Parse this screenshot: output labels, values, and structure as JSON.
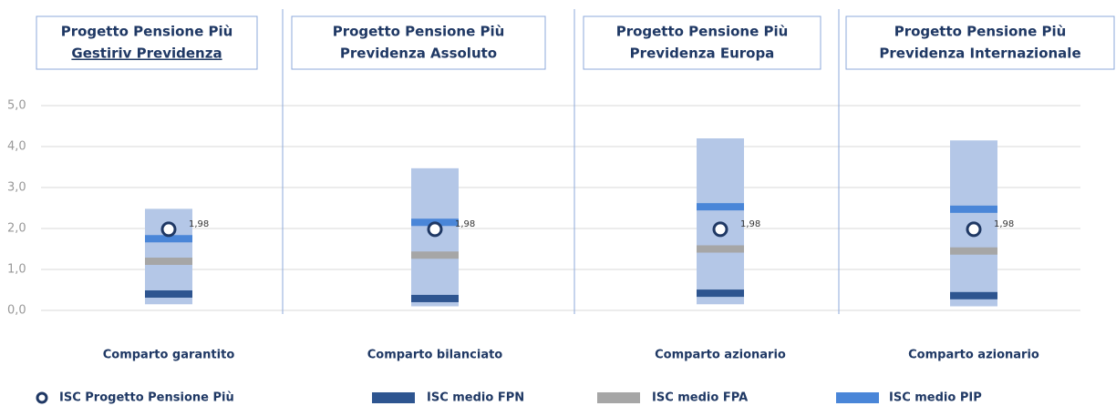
{
  "chart_data": {
    "type": "range",
    "panel_titles": [
      [
        "Progetto Pensione Più",
        "Gestiriv Previdenza"
      ],
      [
        "Progetto Pensione Più",
        "Previdenza Assoluto"
      ],
      [
        "Progetto Pensione Più",
        "Previdenza Europa"
      ],
      [
        "Progetto Pensione Più",
        "Previdenza Internazionale"
      ]
    ],
    "categories": [
      "Comparto garantito",
      "Comparto bilanciato",
      "Comparto azionario",
      "Comparto azionario"
    ],
    "range": {
      "color": "#b4c7e7",
      "low": [
        0.15,
        0.1,
        0.15,
        0.1
      ],
      "high": [
        2.48,
        3.47,
        4.2,
        4.15
      ]
    },
    "series": [
      {
        "name": "ISC Progetto Pensione Più",
        "kind": "marker",
        "color": "#1f3864",
        "values": [
          1.98,
          1.98,
          1.98,
          1.98
        ],
        "value_labels": [
          "1,98",
          "1,98",
          "1,98",
          "1,98"
        ]
      },
      {
        "name": "ISC medio FPN",
        "kind": "tick",
        "color": "#2e5590",
        "values": [
          0.4,
          0.29,
          0.42,
          0.36
        ]
      },
      {
        "name": "ISC medio FPA",
        "kind": "tick",
        "color": "#a6a6a6",
        "values": [
          1.2,
          1.35,
          1.5,
          1.45
        ]
      },
      {
        "name": "ISC medio PIP",
        "kind": "tick",
        "color": "#4a86d8",
        "values": [
          1.75,
          2.15,
          2.53,
          2.47
        ]
      }
    ],
    "ylim": [
      0,
      5
    ],
    "yticks": [
      {
        "value": 0,
        "label": "0,0"
      },
      {
        "value": 1,
        "label": "1,0"
      },
      {
        "value": 2,
        "label": "2,0"
      },
      {
        "value": 3,
        "label": "3,0"
      },
      {
        "value": 4,
        "label": "4,0"
      },
      {
        "value": 5,
        "label": "5,0"
      }
    ],
    "grid": true
  }
}
